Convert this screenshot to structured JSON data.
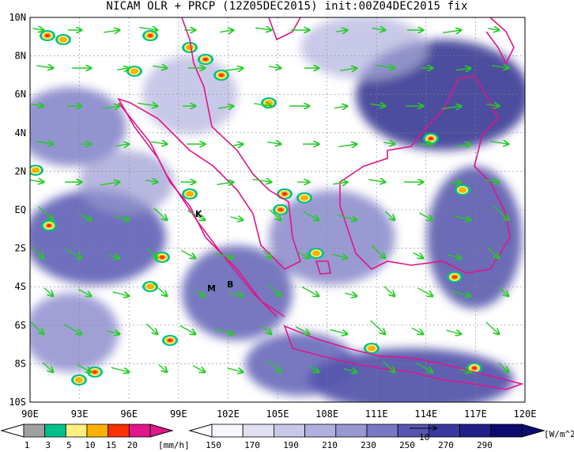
{
  "title": "NICAM OLR + PRCP (12Z05DEC2015) init:00Z04DEC2015 fix",
  "map": {
    "lat_ticks": [
      "10N",
      "8N",
      "6N",
      "4N",
      "2N",
      "EQ",
      "2S",
      "4S",
      "6S",
      "8S",
      "10S"
    ],
    "lon_ticks": [
      "90E",
      "93E",
      "96E",
      "99E",
      "102E",
      "105E",
      "108E",
      "111E",
      "114E",
      "117E",
      "120E"
    ],
    "lat_range": [
      -10,
      10
    ],
    "lon_range": [
      90,
      120
    ],
    "grid": "dotted",
    "coastline_color": "#e0158a",
    "wind_vector_color": "#22cc22",
    "station_markers": [
      "K",
      "M",
      "B"
    ]
  },
  "prcp_colorbar": {
    "labels": [
      "1",
      "3",
      "5",
      "10",
      "15",
      "20"
    ],
    "unit": "[mm/h]",
    "colors": [
      "#a0a0a0",
      "#00c08c",
      "#fff080",
      "#ffb000",
      "#ff3000",
      "#e0168c"
    ]
  },
  "olr_colorbar": {
    "labels": [
      "150",
      "170",
      "190",
      "210",
      "230",
      "250",
      "270",
      "290"
    ],
    "unit": "[W/m^2]",
    "colors": [
      "#f6f6fc",
      "#e0e0f2",
      "#c8c8e8",
      "#b0b0de",
      "#9898d2",
      "#7878c4",
      "#5656b2",
      "#38389e",
      "#202088",
      "#0c0c70"
    ]
  },
  "vector_legend": {
    "label": "10"
  }
}
